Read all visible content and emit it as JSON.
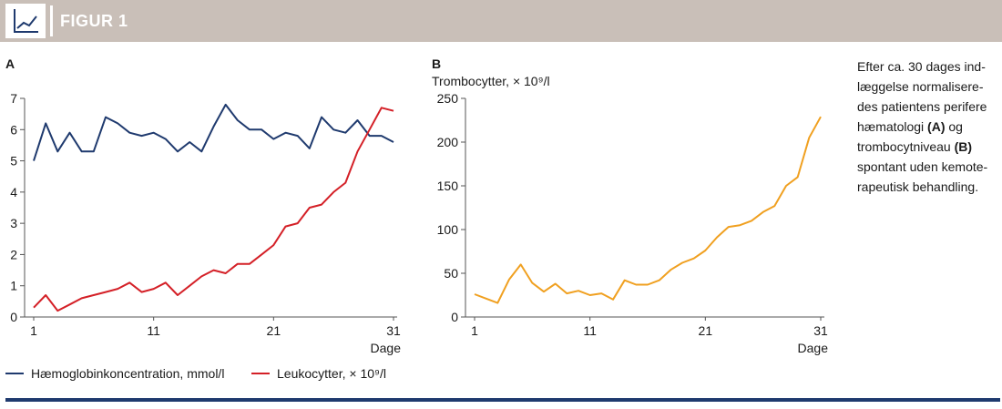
{
  "header": {
    "title": "FIGUR 1",
    "icon": "line-chart-icon"
  },
  "caption": {
    "lines": [
      "Efter ca. 30 dages ind-",
      "læggelse normalisere-",
      "des patientens perifere",
      "hæmatologi (A) og",
      "trombocytniveau (B)",
      "spontant uden kemote-",
      "rapeutisk behandling."
    ]
  },
  "chart_data": [
    {
      "type": "line",
      "panel_label": "A",
      "xlabel": "Dage",
      "xlim": [
        1,
        31
      ],
      "xticks": [
        1,
        11,
        21,
        31
      ],
      "ylim": [
        0,
        7
      ],
      "yticks": [
        0,
        1,
        2,
        3,
        4,
        5,
        6,
        7
      ],
      "grid": false,
      "legend_position": "bottom",
      "x": [
        1,
        2,
        3,
        4,
        5,
        6,
        7,
        8,
        9,
        10,
        11,
        12,
        13,
        14,
        15,
        16,
        17,
        18,
        19,
        20,
        21,
        22,
        23,
        24,
        25,
        26,
        27,
        28,
        29,
        30,
        31
      ],
      "series": [
        {
          "name": "Hæmoglobinkoncentration, mmol/l",
          "color": "#1f3a6e",
          "values": [
            5.0,
            6.2,
            5.3,
            5.9,
            5.3,
            5.3,
            6.4,
            6.2,
            5.9,
            5.8,
            5.9,
            5.7,
            5.3,
            5.6,
            5.3,
            6.1,
            6.8,
            6.3,
            6.0,
            6.0,
            5.7,
            5.9,
            5.8,
            5.4,
            6.4,
            6.0,
            5.9,
            6.3,
            5.8,
            5.8,
            5.6
          ]
        },
        {
          "name": "Leukocytter, × 10⁹/l",
          "color": "#d42027",
          "values": [
            0.3,
            0.7,
            0.2,
            0.4,
            0.6,
            0.7,
            0.8,
            0.9,
            1.1,
            0.8,
            0.9,
            1.1,
            0.7,
            1.0,
            1.3,
            1.5,
            1.4,
            1.7,
            1.7,
            2.0,
            2.3,
            2.9,
            3.0,
            3.5,
            3.6,
            4.0,
            4.3,
            5.3,
            6.0,
            6.7,
            6.6
          ]
        }
      ]
    },
    {
      "type": "line",
      "panel_label": "B",
      "ylabel": "Trombocytter, × 10⁹/l",
      "xlabel": "Dage",
      "xlim": [
        1,
        31
      ],
      "xticks": [
        1,
        11,
        21,
        31
      ],
      "ylim": [
        0,
        250
      ],
      "yticks": [
        0,
        50,
        100,
        150,
        200,
        250
      ],
      "grid": false,
      "x": [
        1,
        2,
        3,
        4,
        5,
        6,
        7,
        8,
        9,
        10,
        11,
        12,
        13,
        14,
        15,
        16,
        17,
        18,
        19,
        20,
        21,
        22,
        23,
        24,
        25,
        26,
        27,
        28,
        29,
        30,
        31
      ],
      "series": [
        {
          "color": "#f0a020",
          "values": [
            26,
            21,
            16,
            43,
            60,
            39,
            29,
            38,
            27,
            30,
            25,
            27,
            20,
            42,
            37,
            37,
            42,
            54,
            62,
            67,
            76,
            91,
            103,
            105,
            110,
            120,
            127,
            150,
            160,
            205,
            229
          ]
        }
      ]
    }
  ]
}
